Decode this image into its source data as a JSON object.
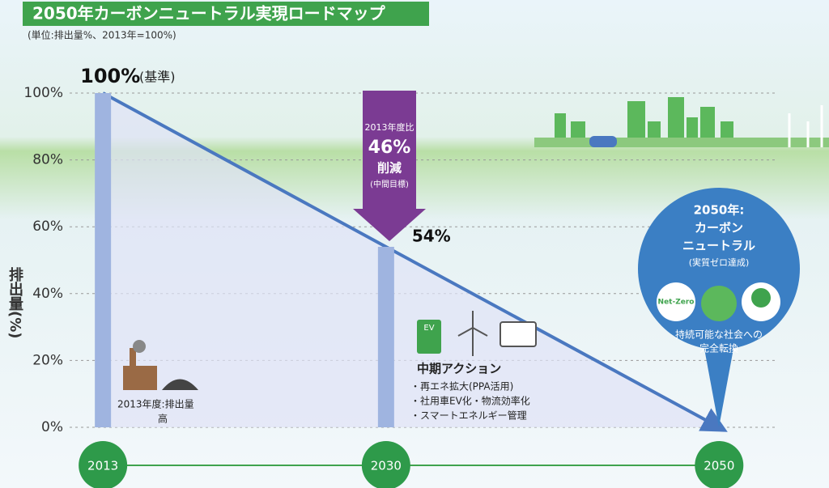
{
  "chart_data": {
    "type": "combo",
    "title": "2050年カーボンニュートラル実現ロードマップ",
    "subtitle": "(単位:排出量%、2013年=100%)",
    "y_label": "排出量(%)",
    "x": [
      2013,
      2030,
      2050
    ],
    "xlim": [
      2011,
      2053
    ],
    "ylim": [
      0,
      100
    ],
    "yticks": [
      {
        "value": 0,
        "label": "0%"
      },
      {
        "value": 20,
        "label": "20%"
      },
      {
        "value": 40,
        "label": "40%"
      },
      {
        "value": 60,
        "label": "60%"
      },
      {
        "value": 80,
        "label": "80%"
      },
      {
        "value": 100,
        "label": "100%"
      }
    ],
    "grid": true,
    "series": [
      {
        "type": "bar",
        "color": "#9fb4e0",
        "values": [
          100,
          54,
          null
        ],
        "value_labels": [
          "100%",
          "54%",
          null
        ]
      },
      {
        "type": "line",
        "color": "#4a78c0",
        "values": [
          100,
          54,
          0
        ]
      }
    ],
    "annotations": {
      "base_note": "(基準)",
      "reduction": [
        "2013年度比",
        "46%",
        "削減",
        "(中間目標)"
      ],
      "start_note": [
        "2013年度:排出量",
        "高"
      ],
      "action_title": "中期アクション",
      "action_items": [
        "・再エネ拡大(PPA活用)",
        "・社用車EV化・物流効率化",
        "・スマートエネルギー管理"
      ],
      "ev_icon": "EV",
      "goal": [
        "2050年:",
        "カーボン",
        "ニュートラル",
        "(実質ゼロ達成)"
      ],
      "badge": "Net-Zero",
      "goal_footer": [
        "持続可能な社会への",
        "完全転換"
      ]
    }
  }
}
